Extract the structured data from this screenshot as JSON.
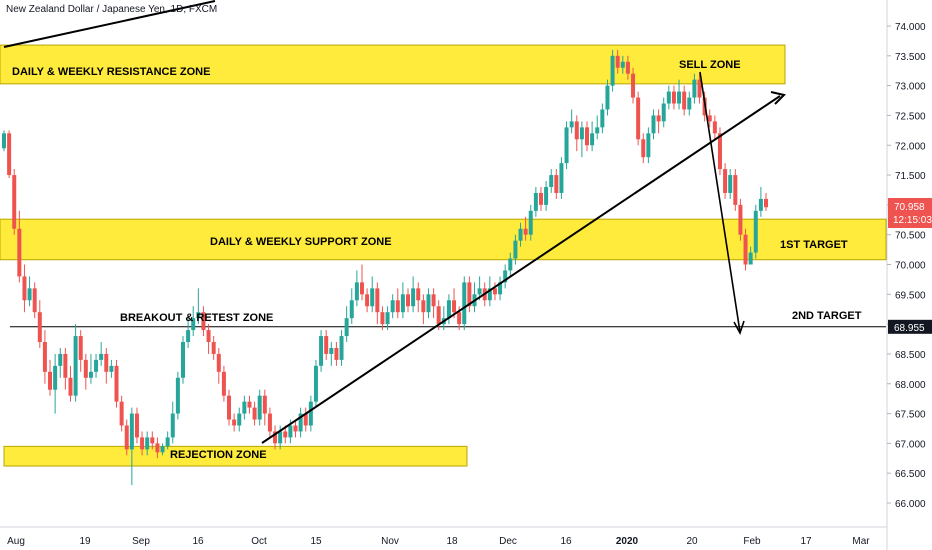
{
  "symbol_title": "New Zealand Dollar / Japanese Yen, 1D, FXCM",
  "colors": {
    "up": "#26a69a",
    "down": "#ef5350",
    "zone": "#ffeb3b",
    "zone_border": "#b8a600",
    "line": "#000000",
    "price_tag": "#ef5350",
    "level_tag": "#131722"
  },
  "chart_data": {
    "type": "candlestick",
    "title": "New Zealand Dollar / Japanese Yen, 1D, FXCM",
    "ylim": [
      65.55,
      74.3
    ],
    "yticks": [
      "74.000",
      "73.500",
      "73.000",
      "72.500",
      "72.000",
      "71.500",
      "71.000",
      "70.500",
      "70.000",
      "69.500",
      "69.000",
      "68.500",
      "68.000",
      "67.500",
      "67.000",
      "66.500",
      "66.000"
    ],
    "xticks": [
      "Aug",
      "19",
      "Sep",
      "16",
      "Oct",
      "15",
      "Nov",
      "18",
      "Dec",
      "16",
      "2020",
      "20",
      "Feb",
      "17",
      "Mar"
    ],
    "price_labels": {
      "last": "70.958",
      "countdown": "12:15:03",
      "level": "68.955"
    },
    "zones": [
      {
        "label": "DAILY & WEEKLY RESISTANCE ZONE",
        "low": 73.03,
        "high": 73.68
      },
      {
        "label": "DAILY & WEEKLY SUPPORT ZONE",
        "low": 70.08,
        "high": 70.76
      },
      {
        "label": "REJECTION ZONE",
        "low": 66.62,
        "high": 66.95
      }
    ],
    "annotations": [
      "SELL ZONE",
      "1ST TARGET",
      "BREAKOUT & RETEST ZONE",
      "2ND TARGET"
    ],
    "horizontal_line": 68.955,
    "candles": [
      [
        71.95,
        72.2,
        72.25,
        71.9
      ],
      [
        72.2,
        71.5,
        72.25,
        71.45
      ],
      [
        71.5,
        70.6,
        71.6,
        70.5
      ],
      [
        70.6,
        69.8,
        70.9,
        69.7
      ],
      [
        69.8,
        69.4,
        70.0,
        69.2
      ],
      [
        69.4,
        69.6,
        69.8,
        69.3
      ],
      [
        69.6,
        69.2,
        69.7,
        69.1
      ],
      [
        69.2,
        68.7,
        69.4,
        68.6
      ],
      [
        68.7,
        68.2,
        68.9,
        68.0
      ],
      [
        68.2,
        67.9,
        68.4,
        67.8
      ],
      [
        67.9,
        68.3,
        68.5,
        67.5
      ],
      [
        68.3,
        68.5,
        68.6,
        68.1
      ],
      [
        68.5,
        68.1,
        68.6,
        67.9
      ],
      [
        68.1,
        67.8,
        68.3,
        67.7
      ],
      [
        67.8,
        68.8,
        69.0,
        67.7
      ],
      [
        68.8,
        68.4,
        68.9,
        68.2
      ],
      [
        68.4,
        68.1,
        68.5,
        67.9
      ],
      [
        68.1,
        68.2,
        68.5,
        68.0
      ],
      [
        68.2,
        68.4,
        68.5,
        68.1
      ],
      [
        68.4,
        68.5,
        68.7,
        68.3
      ],
      [
        68.5,
        68.2,
        68.6,
        68.0
      ],
      [
        68.2,
        68.3,
        68.4,
        68.1
      ],
      [
        68.3,
        67.7,
        68.4,
        67.6
      ],
      [
        67.7,
        67.3,
        67.8,
        67.2
      ],
      [
        67.3,
        66.9,
        67.4,
        66.8
      ],
      [
        66.9,
        67.5,
        67.6,
        66.3
      ],
      [
        67.5,
        67.1,
        67.6,
        67.0
      ],
      [
        67.1,
        66.9,
        67.2,
        66.8
      ],
      [
        66.9,
        67.1,
        67.2,
        66.8
      ],
      [
        67.1,
        67.0,
        67.2,
        66.9
      ],
      [
        67.0,
        66.85,
        67.1,
        66.75
      ],
      [
        66.85,
        66.95,
        67.0,
        66.8
      ],
      [
        66.95,
        67.1,
        67.2,
        66.9
      ],
      [
        67.1,
        67.5,
        67.7,
        67.0
      ],
      [
        67.5,
        68.1,
        68.2,
        67.4
      ],
      [
        68.1,
        68.7,
        68.8,
        68.0
      ],
      [
        68.7,
        68.9,
        69.1,
        68.6
      ],
      [
        68.9,
        69.1,
        69.3,
        68.8
      ],
      [
        69.1,
        69.2,
        69.6,
        69.0
      ],
      [
        69.2,
        68.9,
        69.3,
        68.8
      ],
      [
        68.9,
        68.7,
        69.0,
        68.5
      ],
      [
        68.7,
        68.5,
        68.8,
        68.4
      ],
      [
        68.5,
        68.2,
        68.6,
        68.0
      ],
      [
        68.2,
        67.8,
        68.3,
        67.7
      ],
      [
        67.8,
        67.4,
        67.9,
        67.3
      ],
      [
        67.4,
        67.3,
        67.5,
        67.2
      ],
      [
        67.3,
        67.5,
        67.6,
        67.2
      ],
      [
        67.5,
        67.7,
        67.8,
        67.4
      ],
      [
        67.7,
        67.6,
        67.8,
        67.5
      ],
      [
        67.6,
        67.4,
        67.7,
        67.3
      ],
      [
        67.4,
        67.8,
        67.9,
        67.3
      ],
      [
        67.8,
        67.5,
        67.9,
        67.3
      ],
      [
        67.5,
        67.2,
        67.6,
        67.1
      ],
      [
        67.2,
        67.0,
        67.3,
        66.9
      ],
      [
        67.0,
        67.2,
        67.3,
        66.9
      ],
      [
        67.2,
        67.1,
        67.3,
        67.0
      ],
      [
        67.1,
        67.3,
        67.4,
        67.0
      ],
      [
        67.3,
        67.2,
        67.4,
        67.1
      ],
      [
        67.2,
        67.5,
        67.6,
        67.1
      ],
      [
        67.5,
        67.3,
        67.6,
        67.2
      ],
      [
        67.3,
        67.7,
        67.8,
        67.2
      ],
      [
        67.7,
        68.3,
        68.4,
        67.6
      ],
      [
        68.3,
        68.8,
        68.9,
        68.2
      ],
      [
        68.8,
        68.5,
        68.9,
        68.4
      ],
      [
        68.5,
        68.6,
        68.7,
        68.3
      ],
      [
        68.6,
        68.4,
        68.7,
        68.3
      ],
      [
        68.4,
        68.8,
        68.9,
        68.3
      ],
      [
        68.8,
        69.1,
        69.3,
        68.7
      ],
      [
        69.1,
        69.4,
        69.6,
        69.0
      ],
      [
        69.4,
        69.7,
        69.9,
        69.3
      ],
      [
        69.7,
        69.5,
        70.0,
        69.4
      ],
      [
        69.5,
        69.3,
        69.6,
        69.2
      ],
      [
        69.3,
        69.6,
        69.8,
        69.2
      ],
      [
        69.6,
        69.2,
        69.7,
        69.0
      ],
      [
        69.2,
        69.0,
        69.3,
        68.9
      ],
      [
        69.0,
        69.2,
        69.3,
        68.9
      ],
      [
        69.2,
        69.4,
        69.5,
        69.1
      ],
      [
        69.4,
        69.2,
        69.6,
        69.1
      ],
      [
        69.2,
        69.5,
        69.7,
        69.1
      ],
      [
        69.5,
        69.3,
        69.6,
        69.2
      ],
      [
        69.3,
        69.6,
        69.8,
        69.2
      ],
      [
        69.6,
        69.4,
        69.7,
        69.2
      ],
      [
        69.4,
        69.2,
        69.5,
        69.0
      ],
      [
        69.2,
        69.5,
        69.6,
        69.1
      ],
      [
        69.5,
        69.3,
        69.6,
        69.1
      ],
      [
        69.3,
        69.0,
        69.4,
        68.9
      ],
      [
        69.0,
        69.1,
        69.3,
        68.9
      ],
      [
        69.1,
        69.4,
        69.5,
        69.0
      ],
      [
        69.4,
        69.2,
        69.6,
        69.1
      ],
      [
        69.2,
        69.0,
        69.3,
        68.9
      ],
      [
        69.0,
        69.7,
        69.8,
        68.9
      ],
      [
        69.7,
        69.3,
        69.8,
        69.2
      ],
      [
        69.3,
        69.5,
        69.7,
        69.2
      ],
      [
        69.5,
        69.6,
        69.8,
        69.4
      ],
      [
        69.6,
        69.4,
        69.7,
        69.3
      ],
      [
        69.4,
        69.6,
        69.8,
        69.3
      ],
      [
        69.6,
        69.5,
        69.7,
        69.4
      ],
      [
        69.5,
        69.7,
        69.8,
        69.4
      ],
      [
        69.7,
        69.9,
        70.0,
        69.6
      ],
      [
        69.9,
        70.1,
        70.2,
        69.8
      ],
      [
        70.1,
        70.4,
        70.5,
        70.0
      ],
      [
        70.4,
        70.6,
        70.7,
        70.3
      ],
      [
        70.6,
        70.5,
        70.8,
        70.4
      ],
      [
        70.5,
        70.9,
        71.0,
        70.4
      ],
      [
        70.9,
        71.2,
        71.3,
        70.8
      ],
      [
        71.2,
        71.0,
        71.3,
        70.9
      ],
      [
        71.0,
        71.3,
        71.4,
        70.9
      ],
      [
        71.3,
        71.5,
        71.6,
        71.2
      ],
      [
        71.5,
        71.2,
        71.6,
        71.1
      ],
      [
        71.2,
        71.7,
        71.8,
        71.1
      ],
      [
        71.7,
        72.3,
        72.4,
        71.6
      ],
      [
        72.3,
        72.4,
        72.6,
        72.2
      ],
      [
        72.4,
        72.1,
        72.5,
        71.9
      ],
      [
        72.1,
        72.3,
        72.4,
        71.8
      ],
      [
        72.3,
        72.0,
        72.4,
        71.9
      ],
      [
        72.0,
        72.2,
        72.4,
        71.9
      ],
      [
        72.2,
        72.3,
        72.5,
        72.1
      ],
      [
        72.3,
        72.6,
        72.7,
        72.2
      ],
      [
        72.6,
        73.0,
        73.1,
        72.5
      ],
      [
        73.0,
        73.5,
        73.6,
        72.9
      ],
      [
        73.5,
        73.3,
        73.6,
        73.2
      ],
      [
        73.3,
        73.4,
        73.5,
        73.2
      ],
      [
        73.4,
        73.2,
        73.5,
        73.1
      ],
      [
        73.2,
        72.8,
        73.3,
        72.7
      ],
      [
        72.8,
        72.1,
        72.9,
        72.0
      ],
      [
        72.1,
        71.8,
        72.2,
        71.7
      ],
      [
        71.8,
        72.2,
        72.3,
        71.7
      ],
      [
        72.2,
        72.5,
        72.6,
        72.1
      ],
      [
        72.5,
        72.4,
        72.6,
        72.2
      ],
      [
        72.4,
        72.7,
        72.8,
        72.3
      ],
      [
        72.7,
        72.9,
        73.0,
        72.6
      ],
      [
        72.9,
        72.7,
        73.0,
        72.6
      ],
      [
        72.7,
        72.9,
        73.1,
        72.6
      ],
      [
        72.9,
        72.6,
        73.0,
        72.5
      ],
      [
        72.6,
        72.8,
        72.9,
        72.5
      ],
      [
        72.8,
        73.1,
        73.2,
        72.7
      ],
      [
        73.1,
        72.8,
        73.2,
        72.7
      ],
      [
        72.8,
        72.5,
        72.9,
        72.4
      ],
      [
        72.5,
        72.4,
        72.6,
        72.3
      ],
      [
        72.4,
        72.2,
        72.5,
        72.1
      ],
      [
        72.2,
        71.6,
        72.3,
        71.5
      ],
      [
        71.6,
        71.2,
        71.7,
        71.1
      ],
      [
        71.2,
        71.5,
        71.6,
        71.1
      ],
      [
        71.5,
        71.0,
        71.6,
        70.9
      ],
      [
        71.0,
        70.5,
        71.1,
        70.4
      ],
      [
        70.5,
        70.0,
        70.6,
        69.9
      ],
      [
        70.0,
        70.2,
        70.3,
        70.0
      ],
      [
        70.2,
        70.9,
        71.0,
        70.1
      ],
      [
        70.9,
        71.1,
        71.3,
        70.8
      ],
      [
        71.1,
        70.96,
        71.2,
        70.9
      ]
    ]
  },
  "axis_labels_note": ""
}
